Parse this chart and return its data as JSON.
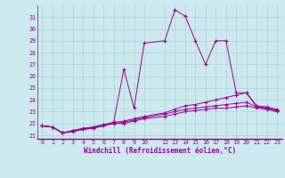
{
  "background_color": "#cce9ed",
  "grid_color": "#aad4d8",
  "line_color": "#990099",
  "xlabel": "Windchill (Refroidissement éolien,°C)",
  "xlim": [
    -0.5,
    23.5
  ],
  "ylim": [
    20.7,
    32.0
  ],
  "yticks": [
    21,
    22,
    23,
    24,
    25,
    26,
    27,
    28,
    29,
    30,
    31
  ],
  "xticks": [
    0,
    1,
    2,
    3,
    4,
    5,
    6,
    7,
    8,
    9,
    10,
    12,
    13,
    14,
    15,
    16,
    17,
    18,
    19,
    20,
    21,
    22,
    23
  ],
  "xtick_labels": [
    "0",
    "1",
    "2",
    "3",
    "4",
    "5",
    "6",
    "7",
    "8",
    "9",
    "10",
    "12",
    "13",
    "14",
    "15",
    "16",
    "17",
    "18",
    "19",
    "20",
    "21",
    "22",
    "23"
  ],
  "series": [
    {
      "x": [
        0,
        1,
        2,
        3,
        4,
        5,
        6,
        7,
        8,
        9,
        10,
        12,
        13,
        14,
        15,
        16,
        17,
        18,
        19,
        20,
        21,
        22,
        23
      ],
      "y": [
        21.8,
        21.7,
        21.2,
        21.3,
        21.5,
        21.6,
        21.8,
        22.1,
        26.6,
        23.3,
        28.8,
        29.0,
        31.6,
        31.1,
        29.0,
        27.0,
        29.0,
        29.0,
        24.6,
        24.6,
        23.4,
        23.3,
        23.1
      ]
    },
    {
      "x": [
        0,
        1,
        2,
        3,
        4,
        5,
        6,
        7,
        8,
        9,
        10,
        12,
        13,
        14,
        15,
        16,
        17,
        18,
        19,
        20,
        21,
        22,
        23
      ],
      "y": [
        21.8,
        21.7,
        21.2,
        21.4,
        21.6,
        21.7,
        21.9,
        22.1,
        22.2,
        22.4,
        22.6,
        22.9,
        23.2,
        23.5,
        23.6,
        23.8,
        24.0,
        24.2,
        24.4,
        24.6,
        23.5,
        23.4,
        23.2
      ]
    },
    {
      "x": [
        0,
        1,
        2,
        3,
        4,
        5,
        6,
        7,
        8,
        9,
        10,
        12,
        13,
        14,
        15,
        16,
        17,
        18,
        19,
        20,
        21,
        22,
        23
      ],
      "y": [
        21.8,
        21.7,
        21.2,
        21.4,
        21.5,
        21.7,
        21.9,
        22.0,
        22.1,
        22.3,
        22.5,
        22.8,
        23.0,
        23.2,
        23.3,
        23.4,
        23.5,
        23.6,
        23.7,
        23.8,
        23.4,
        23.3,
        23.1
      ]
    },
    {
      "x": [
        0,
        1,
        2,
        3,
        4,
        5,
        6,
        7,
        8,
        9,
        10,
        12,
        13,
        14,
        15,
        16,
        17,
        18,
        19,
        20,
        21,
        22,
        23
      ],
      "y": [
        21.8,
        21.7,
        21.2,
        21.4,
        21.5,
        21.6,
        21.8,
        22.0,
        22.0,
        22.2,
        22.4,
        22.6,
        22.8,
        23.0,
        23.1,
        23.2,
        23.3,
        23.3,
        23.4,
        23.5,
        23.3,
        23.2,
        23.0
      ]
    }
  ]
}
